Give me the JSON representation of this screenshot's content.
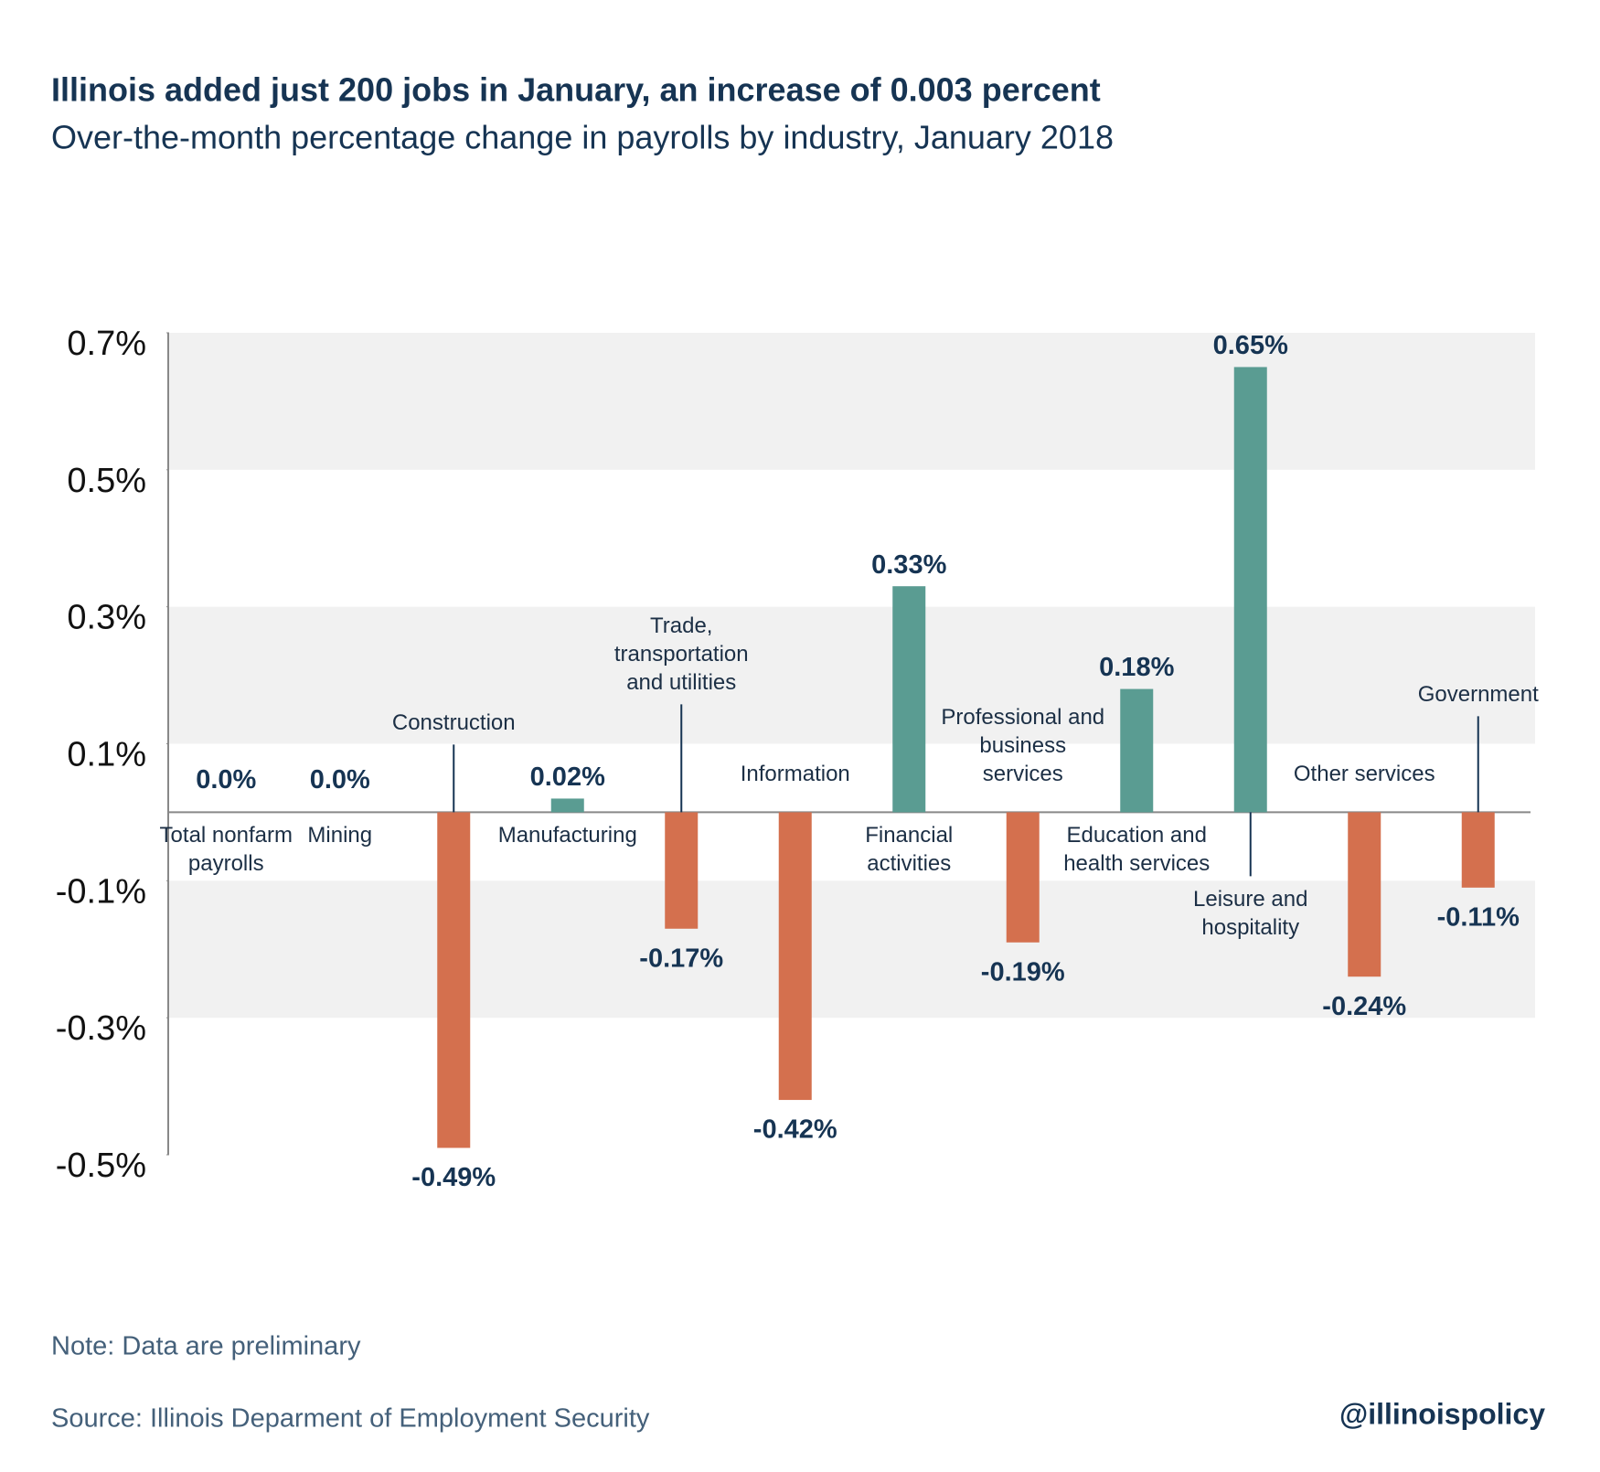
{
  "chart_data": {
    "type": "bar",
    "title": "Illinois added just 200 jobs in January, an increase of 0.003 percent",
    "subtitle": "Over-the-month percentage change in payrolls by industry, January 2018",
    "categories": [
      "Total nonfarm payrolls",
      "Mining",
      "Construction",
      "Manufacturing",
      "Trade, transportation and utilities",
      "Information",
      "Financial activities",
      "Professional and business services",
      "Education and health services",
      "Leisure and hospitality",
      "Other services",
      "Government"
    ],
    "values": [
      0.0,
      0.0,
      -0.49,
      0.02,
      -0.17,
      -0.42,
      0.33,
      -0.19,
      0.18,
      0.65,
      -0.24,
      -0.11
    ],
    "value_labels": [
      "0.0%",
      "0.0%",
      "-0.49%",
      "0.02%",
      "-0.17%",
      "-0.42%",
      "0.33%",
      "-0.19%",
      "0.18%",
      "0.65%",
      "-0.24%",
      "-0.11%"
    ],
    "colors": {
      "positive": "#5a9c92",
      "negative": "#d4704e"
    },
    "ylim": [
      -0.5,
      0.7
    ],
    "yticks": [
      {
        "value": 0.7,
        "label": "0.7%"
      },
      {
        "value": 0.5,
        "label": "0.5%"
      },
      {
        "value": 0.3,
        "label": "0.3%"
      },
      {
        "value": 0.1,
        "label": "0.1%"
      },
      {
        "value": -0.1,
        "label": "-0.1%"
      },
      {
        "value": -0.3,
        "label": "-0.3%"
      },
      {
        "value": -0.5,
        "label": "-0.5%"
      }
    ],
    "bands": true,
    "note": "Note: Data are preliminary",
    "source": "Source:  Illinois Deparment of Employment Security",
    "credit": "@illinoispolicy"
  }
}
